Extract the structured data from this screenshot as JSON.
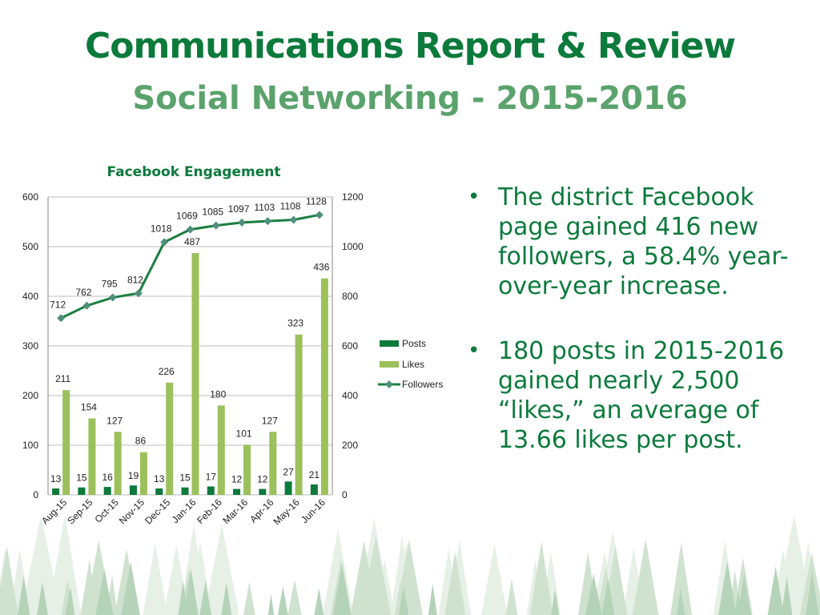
{
  "slide": {
    "title": "Communications Report & Review",
    "subtitle": "Social Networking - 2015-2016",
    "bullets": [
      "The district Facebook page gained 416 new followers, a 58.4% year-over-year increase.",
      "180 posts in 2015-2016 gained nearly 2,500 “likes,” an average of 13.66 likes per post."
    ]
  },
  "colors": {
    "title": "#0b7a3b",
    "subtitle": "#5aa36c",
    "posts": "#0b7a3b",
    "likes": "#9cc05b",
    "followers_line": "#1b7f3f",
    "followers_marker": "#4f8f7b"
  },
  "chart_data": {
    "type": "bar",
    "title": "Facebook Engagement",
    "categories": [
      "Aug-15",
      "Sep-15",
      "Oct-15",
      "Nov-15",
      "Dec-15",
      "Jan-16",
      "Feb-16",
      "Mar-16",
      "Apr-16",
      "May-16",
      "Jun-16"
    ],
    "series": [
      {
        "name": "Posts",
        "type": "bar",
        "axis": "left",
        "values": [
          13,
          15,
          16,
          19,
          13,
          15,
          17,
          12,
          12,
          27,
          21
        ]
      },
      {
        "name": "Likes",
        "type": "bar",
        "axis": "left",
        "values": [
          211,
          154,
          127,
          86,
          226,
          487,
          180,
          101,
          127,
          323,
          436
        ]
      },
      {
        "name": "Followers",
        "type": "line",
        "axis": "right",
        "values": [
          712,
          762,
          795,
          812,
          1018,
          1069,
          1085,
          1097,
          1103,
          1108,
          1128
        ]
      }
    ],
    "ylim_left": [
      0,
      600
    ],
    "yticks_left": [
      0,
      100,
      200,
      300,
      400,
      500,
      600
    ],
    "ylim_right": [
      0,
      1200
    ],
    "yticks_right": [
      0,
      200,
      400,
      600,
      800,
      1000,
      1200
    ],
    "grid": true,
    "legend_position": "right"
  }
}
